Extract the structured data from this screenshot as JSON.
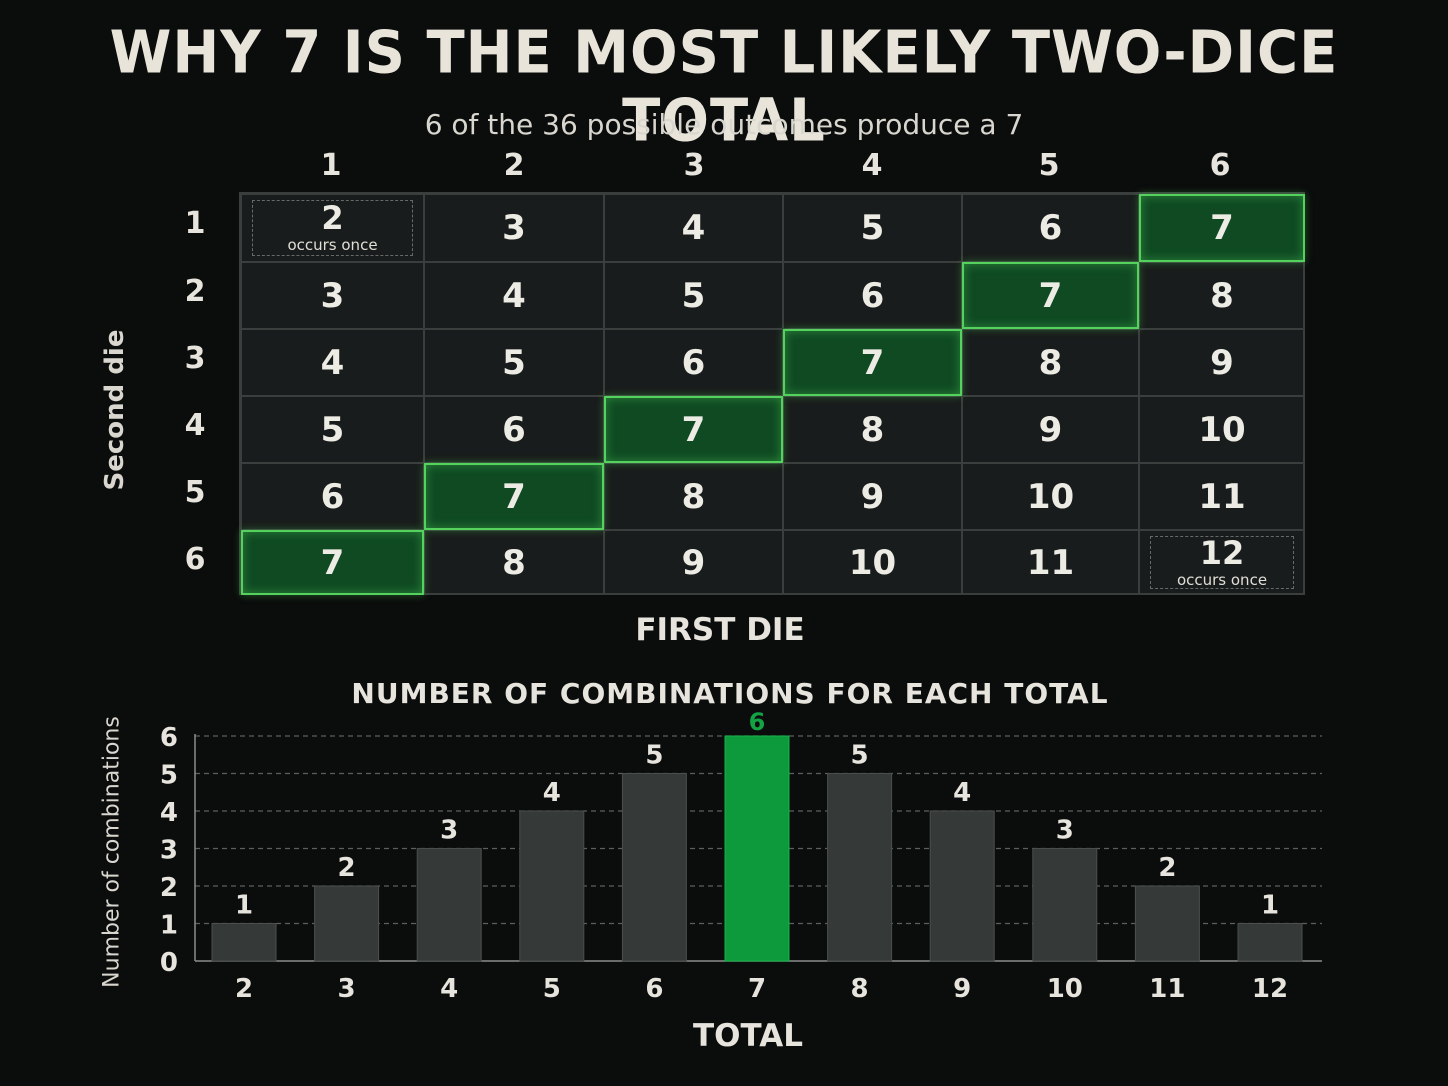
{
  "title": "WHY 7 IS THE MOST LIKELY TWO-DICE TOTAL",
  "subtitle": "6 of the 36 possible outcomes produce a 7",
  "grid": {
    "column_labels": [
      "1",
      "2",
      "3",
      "4",
      "5",
      "6"
    ],
    "row_labels": [
      "1",
      "2",
      "3",
      "4",
      "5",
      "6"
    ],
    "x_title": "FIRST DIE",
    "y_title": "Second die",
    "totals": [
      [
        "2",
        "3",
        "4",
        "5",
        "6",
        "7"
      ],
      [
        "3",
        "4",
        "5",
        "6",
        "7",
        "8"
      ],
      [
        "4",
        "5",
        "6",
        "7",
        "8",
        "9"
      ],
      [
        "5",
        "6",
        "7",
        "8",
        "9",
        "10"
      ],
      [
        "6",
        "7",
        "8",
        "9",
        "10",
        "11"
      ],
      [
        "7",
        "8",
        "9",
        "10",
        "11",
        "12"
      ]
    ],
    "highlight_total": "7",
    "highlight_color": "#0f4a22",
    "highlight_border": "#55d25e",
    "notes": {
      "first": "occurs once",
      "last": "occurs once"
    }
  },
  "chart_data": {
    "type": "bar",
    "title": "NUMBER OF COMBINATIONS FOR EACH TOTAL",
    "xlabel": "TOTAL",
    "ylabel": "Number of combinations",
    "categories": [
      "2",
      "3",
      "4",
      "5",
      "6",
      "7",
      "8",
      "9",
      "10",
      "11",
      "12"
    ],
    "values": [
      1,
      2,
      3,
      4,
      5,
      6,
      5,
      4,
      3,
      2,
      1
    ],
    "ylim": [
      0,
      6
    ],
    "yticks": [
      "0",
      "1",
      "2",
      "3",
      "4",
      "5",
      "6"
    ],
    "highlight_category": "7",
    "bar_color": "#353a39",
    "highlight_color": "#0c9a3c",
    "highlight_label_color": "#13a345",
    "grid": true
  }
}
